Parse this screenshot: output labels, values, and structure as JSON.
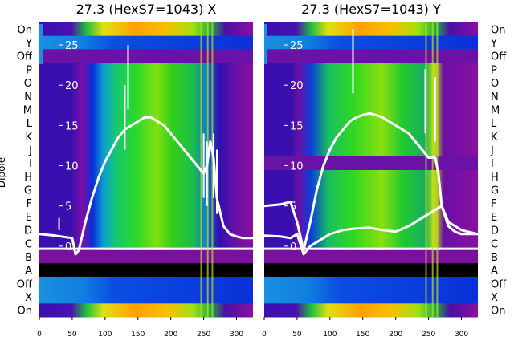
{
  "chart_data": [
    {
      "type": "heatmap",
      "title": "27.3 (HexS7=1043) X",
      "ylabel": "Dipole",
      "xlim": [
        0,
        325
      ],
      "xticks": [
        0,
        50,
        100,
        150,
        200,
        250,
        300
      ],
      "row_labels_top_to_bottom": [
        "On",
        "Y",
        "Off",
        "P",
        "O",
        "N",
        "M",
        "L",
        "K",
        "J",
        "I",
        "H",
        "G",
        "F",
        "E",
        "D",
        "C",
        "B",
        "A",
        "Off",
        "X",
        "On"
      ],
      "overlay_ylim": [
        -3,
        27
      ],
      "overlay_yticks": [
        0,
        5,
        10,
        15,
        20,
        25
      ],
      "series": [
        {
          "name": "",
          "x": [
            0,
            25,
            50,
            55,
            60,
            70,
            80,
            90,
            100,
            110,
            120,
            130,
            140,
            150,
            160,
            170,
            180,
            190,
            200,
            210,
            220,
            230,
            240,
            250,
            255,
            260,
            265,
            270,
            280,
            290,
            300,
            310,
            325
          ],
          "y": [
            1.5,
            1.3,
            1.0,
            -1.0,
            -0.5,
            3,
            6,
            8.5,
            10.5,
            12,
            13.5,
            14.5,
            15,
            15.5,
            16,
            16,
            15.5,
            15,
            14,
            13,
            12,
            11,
            10,
            9,
            10,
            13,
            11,
            6,
            2.5,
            1.5,
            1.2,
            1.0,
            1.0
          ]
        }
      ],
      "spikes": [
        {
          "x": 130,
          "y": 20
        },
        {
          "x": 135,
          "y": 25
        },
        {
          "x": 250,
          "y": 14
        },
        {
          "x": 255,
          "y": 13
        },
        {
          "x": 265,
          "y": 14
        },
        {
          "x": 270,
          "y": 12
        },
        {
          "x": 30,
          "y": 3.5
        }
      ]
    },
    {
      "type": "heatmap",
      "title": "27.3 (HexS7=1043) Y",
      "xlim": [
        0,
        325
      ],
      "xticks": [
        0,
        50,
        100,
        150,
        200,
        250,
        300
      ],
      "row_labels_top_to_bottom": [
        "On",
        "Y",
        "Off",
        "P",
        "O",
        "N",
        "M",
        "L",
        "K",
        "J",
        "I",
        "H",
        "G",
        "F",
        "E",
        "D",
        "C",
        "B",
        "A",
        "Off",
        "X",
        "On"
      ],
      "overlay_ylim": [
        -3,
        27
      ],
      "overlay_yticks": [
        0,
        5,
        10,
        15,
        20,
        25
      ],
      "series": [
        {
          "name": "",
          "x": [
            0,
            25,
            40,
            50,
            60,
            70,
            80,
            90,
            100,
            110,
            120,
            130,
            140,
            150,
            160,
            170,
            180,
            190,
            200,
            210,
            220,
            230,
            240,
            250,
            260,
            265,
            270,
            280,
            290,
            300,
            310,
            325
          ],
          "y": [
            5.0,
            5.2,
            5.5,
            3,
            -0.5,
            3,
            7,
            10,
            12,
            13.5,
            14.5,
            15.5,
            16,
            16.3,
            16.5,
            16.3,
            16,
            15.5,
            15,
            14.5,
            14,
            13,
            12,
            11,
            11,
            9,
            5,
            3,
            2.5,
            2,
            1.8,
            1.5
          ]
        },
        {
          "name": "",
          "x": [
            0,
            25,
            40,
            50,
            60,
            70,
            80,
            90,
            100,
            120,
            140,
            160,
            180,
            200,
            220,
            240,
            260,
            270,
            280,
            290,
            300,
            325
          ],
          "y": [
            1.3,
            1.2,
            1.0,
            1.5,
            -1.0,
            0,
            0.5,
            1,
            1.5,
            2,
            2.2,
            2.3,
            2,
            1.8,
            2.5,
            3.5,
            4.5,
            5,
            2.5,
            1.8,
            1.5,
            1.5
          ]
        }
      ],
      "spikes": [
        {
          "x": 245,
          "y": 22
        },
        {
          "x": 260,
          "y": 21
        },
        {
          "x": 135,
          "y": 27
        }
      ]
    }
  ]
}
